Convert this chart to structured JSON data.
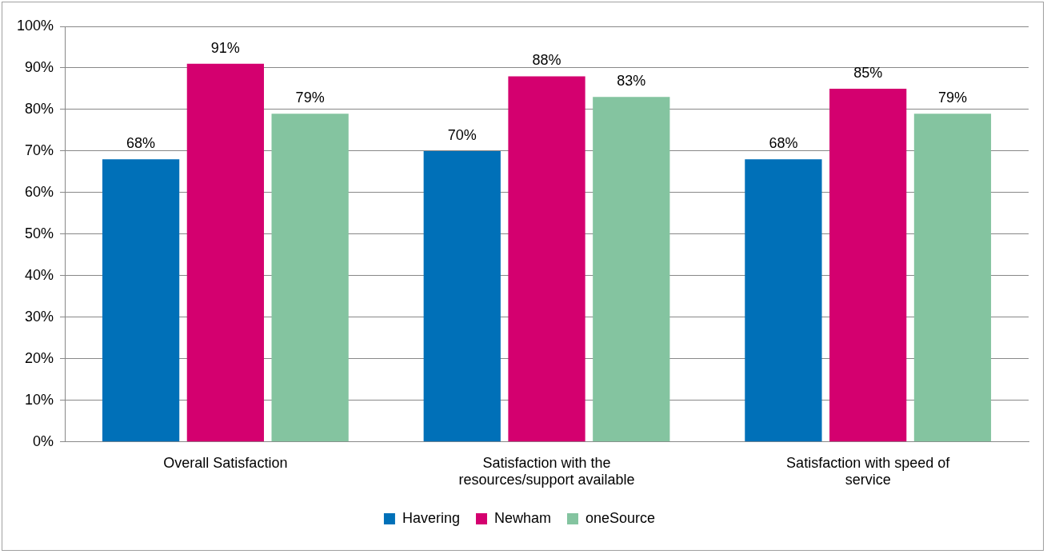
{
  "chart_data": {
    "type": "bar",
    "categories": [
      "Overall Satisfaction",
      "Satisfaction with the resources/support available",
      "Satisfaction with speed of service"
    ],
    "series": [
      {
        "name": "Havering",
        "color": "#0070b8",
        "values": [
          68,
          70,
          68
        ],
        "value_labels": [
          "68%",
          "70%",
          "68%"
        ]
      },
      {
        "name": "Newham",
        "color": "#d4006f",
        "values": [
          91,
          88,
          85
        ],
        "value_labels": [
          "91%",
          "88%",
          "85%"
        ]
      },
      {
        "name": "oneSource",
        "color": "#84c4a0",
        "values": [
          79,
          83,
          79
        ],
        "value_labels": [
          "79%",
          "83%",
          "79%"
        ]
      }
    ],
    "ylim": [
      0,
      100
    ],
    "yticks": [
      {
        "value": 0,
        "label": "0%"
      },
      {
        "value": 10,
        "label": "10%"
      },
      {
        "value": 20,
        "label": "20%"
      },
      {
        "value": 30,
        "label": "30%"
      },
      {
        "value": 40,
        "label": "40%"
      },
      {
        "value": 50,
        "label": "50%"
      },
      {
        "value": 60,
        "label": "60%"
      },
      {
        "value": 70,
        "label": "70%"
      },
      {
        "value": 80,
        "label": "80%"
      },
      {
        "value": 90,
        "label": "90%"
      },
      {
        "value": 100,
        "label": "100%"
      }
    ],
    "grid": "y",
    "legend": "bottom"
  }
}
